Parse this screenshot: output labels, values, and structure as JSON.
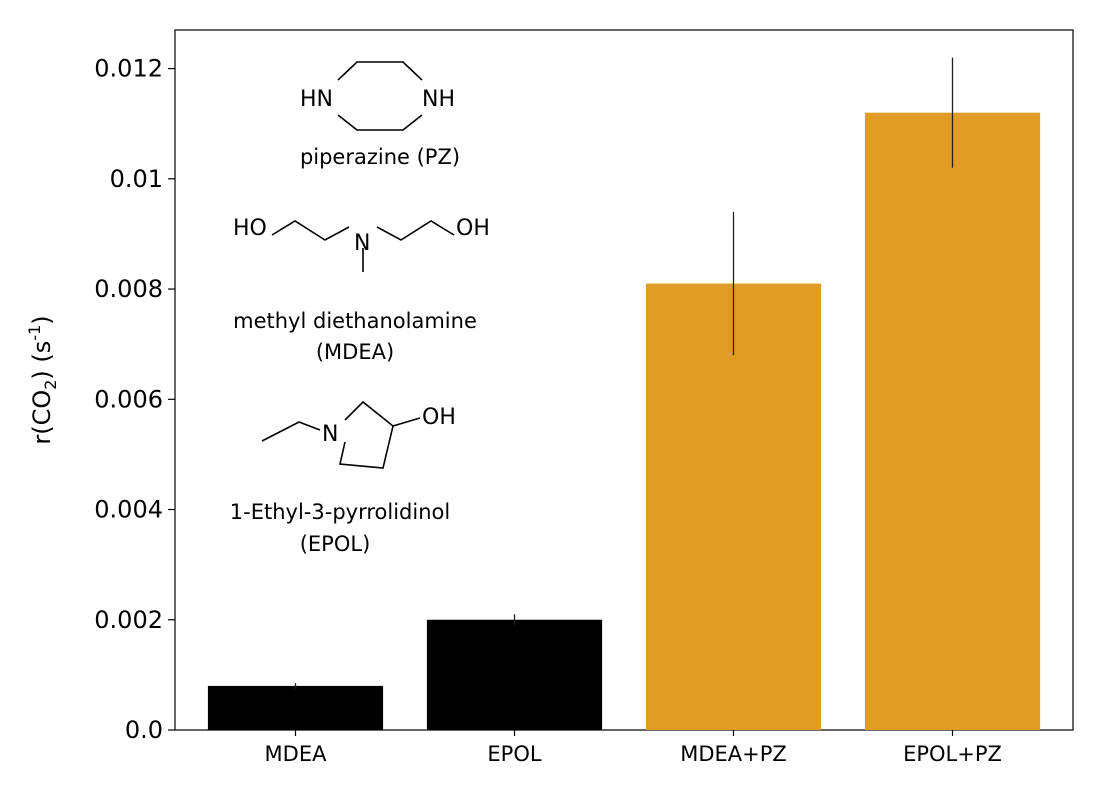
{
  "chart_data": {
    "type": "bar",
    "title": "",
    "xlabel": "",
    "ylabel": "r(CO",
    "ylabel_sub": "2",
    "ylabel_rest": ") (s",
    "ylabel_sup": "-1",
    "ylabel_end": ")",
    "ylim": [
      0,
      0.0127
    ],
    "yticks": [
      0,
      0.002,
      0.004,
      0.006,
      0.008,
      0.01,
      0.012
    ],
    "ytick_labels": [
      "0.0",
      "0.002",
      "0.004",
      "0.006",
      "0.008",
      "0.01",
      "0.012"
    ],
    "categories": [
      "MDEA",
      "EPOL",
      "MDEA+PZ",
      "EPOL+PZ"
    ],
    "values": [
      0.0008,
      0.002,
      0.0081,
      0.0112
    ],
    "errors": [
      5e-05,
      0.0001,
      0.0013,
      0.001
    ],
    "colors": [
      "#000000",
      "#000000",
      "#e09c24",
      "#e09c24"
    ],
    "grid": false
  },
  "annotations": {
    "pz_name": "piperazine (PZ)",
    "pz_hn": "HN",
    "pz_nh": "NH",
    "mdea_name": "methyl diethanolamine",
    "mdea_abbr": "(MDEA)",
    "mdea_ho": "HO",
    "mdea_n": "N",
    "mdea_oh": "OH",
    "epol_name": "1-Ethyl-3-pyrrolidinol",
    "epol_abbr": "(EPOL)",
    "epol_n": "N",
    "epol_oh": "OH"
  }
}
